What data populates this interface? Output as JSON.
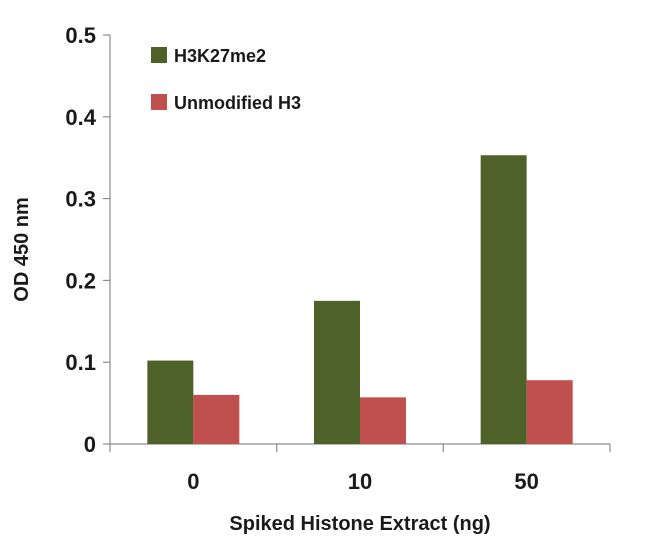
{
  "chart_data": {
    "type": "bar",
    "title": "",
    "xlabel": "Spiked Histone Extract (ng)",
    "ylabel": "OD 450 nm",
    "categories": [
      "0",
      "10",
      "50"
    ],
    "series": [
      {
        "name": "H3K27me2",
        "values": [
          0.102,
          0.175,
          0.353
        ],
        "color": "#4e6128"
      },
      {
        "name": "Unmodified H3",
        "values": [
          0.06,
          0.057,
          0.078
        ],
        "color": "#c0504d"
      }
    ],
    "ylim": [
      0,
      0.5
    ],
    "yticks": [
      "0",
      "0.1",
      "0.2",
      "0.3",
      "0.4",
      "0.5"
    ],
    "grid": false,
    "legend_position": "top-left"
  }
}
